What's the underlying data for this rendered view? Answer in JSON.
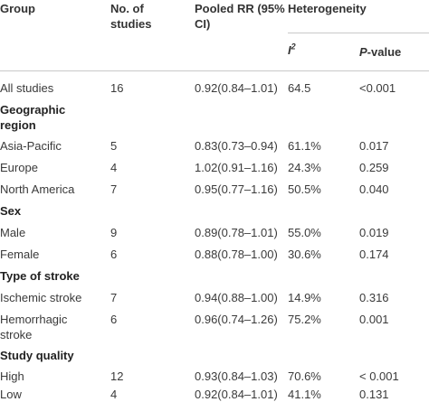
{
  "headers": {
    "group": "Group",
    "studies_line1": "No. of",
    "studies_line2": "studies",
    "rr_line1": "Pooled RR (95%",
    "rr_line2": "CI)",
    "heterogeneity": "Heterogeneity",
    "i2_base": "I",
    "i2_sup": "2",
    "p_italic": "P",
    "p_rest": "-value"
  },
  "rows": {
    "all": {
      "group": "All studies",
      "n": "16",
      "rr": "0.92(0.84–1.01)",
      "i2": "64.5",
      "p": "<0.001"
    },
    "section_geo_line1": "Geographic",
    "section_geo_line2": "region",
    "asia": {
      "group": "Asia-Pacific",
      "n": "5",
      "rr": "0.83(0.73–0.94)",
      "i2": "61.1%",
      "p": "0.017"
    },
    "europe": {
      "group": "Europe",
      "n": "4",
      "rr": "1.02(0.91–1.16)",
      "i2": "24.3%",
      "p": "0.259"
    },
    "na": {
      "group": "North America",
      "n": "7",
      "rr": "0.95(0.77–1.16)",
      "i2": "50.5%",
      "p": "0.040"
    },
    "section_sex": "Sex",
    "male": {
      "group": "Male",
      "n": "9",
      "rr": "0.89(0.78–1.01)",
      "i2": "55.0%",
      "p": "0.019"
    },
    "female": {
      "group": "Female",
      "n": "6",
      "rr": "0.88(0.78–1.00)",
      "i2": "30.6%",
      "p": "0.174"
    },
    "section_stroke": "Type of stroke",
    "ischemic": {
      "group": "Ischemic stroke",
      "n": "7",
      "rr": "0.94(0.88–1.00)",
      "i2": "14.9%",
      "p": "0.316"
    },
    "hemorrhagic": {
      "group_line1": "Hemorrhagic",
      "group_line2": "stroke",
      "n": "6",
      "rr": "0.96(0.74–1.26)",
      "i2": "75.2%",
      "p": "0.001"
    },
    "section_quality": "Study quality",
    "high": {
      "group": "High",
      "n": "12",
      "rr": "0.93(0.84–1.03)",
      "i2": "70.6%",
      "p": "< 0.001"
    },
    "low": {
      "group": "Low",
      "n": "4",
      "rr": "0.92(0.84–1.01)",
      "i2": "41.1%",
      "p": "0.131"
    }
  }
}
